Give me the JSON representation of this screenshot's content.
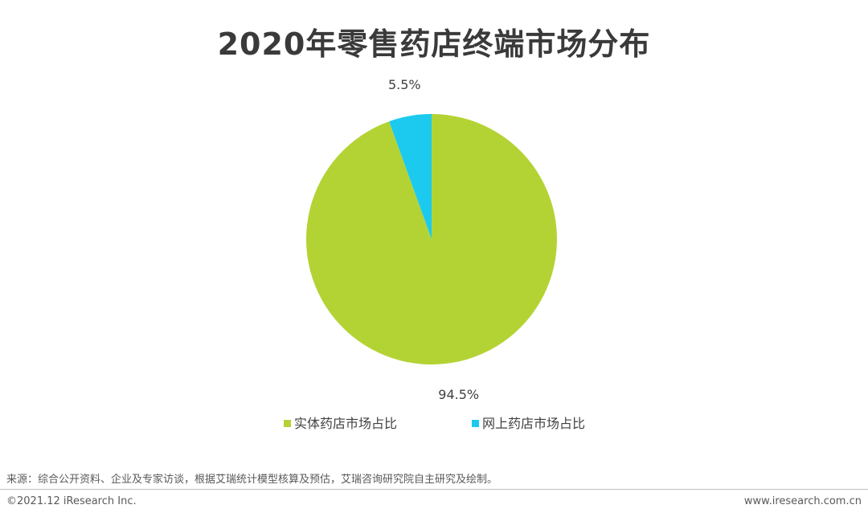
{
  "title": "2020年零售药店终端市场分布",
  "chart_data": {
    "type": "pie",
    "title": "2020年零售药店终端市场分布",
    "slices": [
      {
        "name": "实体药店市场占比",
        "value": 94.5,
        "label": "94.5%",
        "color": "#b3d334"
      },
      {
        "name": "网上药店市场占比",
        "value": 5.5,
        "label": "5.5%",
        "color": "#1ccaf0"
      }
    ],
    "legend_position": "bottom"
  },
  "footer": {
    "source": "来源：综合公开资料、企业及专家访谈，根据艾瑞统计模型核算及预估，艾瑞咨询研究院自主研究及绘制。",
    "copyright": "©2021.12 iResearch Inc.",
    "website": "www.iresearch.com.cn"
  }
}
